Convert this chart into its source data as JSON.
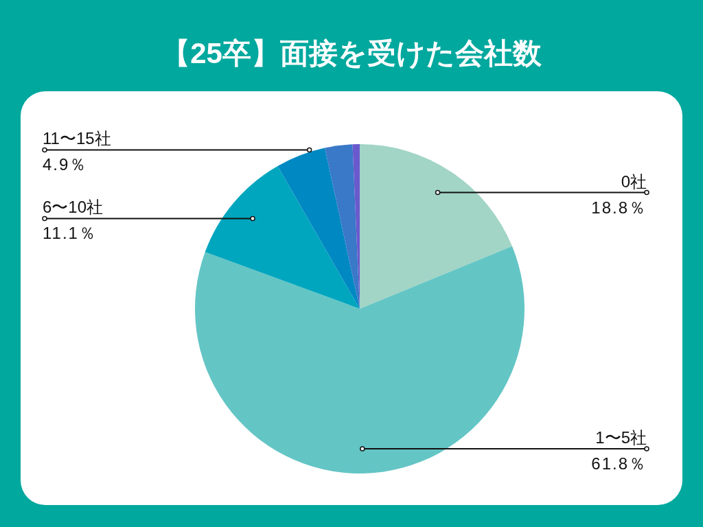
{
  "chart_data": {
    "type": "pie",
    "title": "【25卒】面接を受けた会社数",
    "categories": [
      "0社",
      "1〜5社",
      "6〜10社",
      "11〜15社",
      null,
      null
    ],
    "values": [
      18.8,
      61.8,
      11.1,
      4.9,
      2.7,
      0.7
    ],
    "colors": [
      "#a2d5c6",
      "#64c5c5",
      "#00a6be",
      "#0088c2",
      "#3a78c8",
      "#6a5acd"
    ],
    "value_labels": [
      "18.8％",
      "61.8％",
      "11.1％",
      "4.9％",
      null,
      null
    ]
  }
}
